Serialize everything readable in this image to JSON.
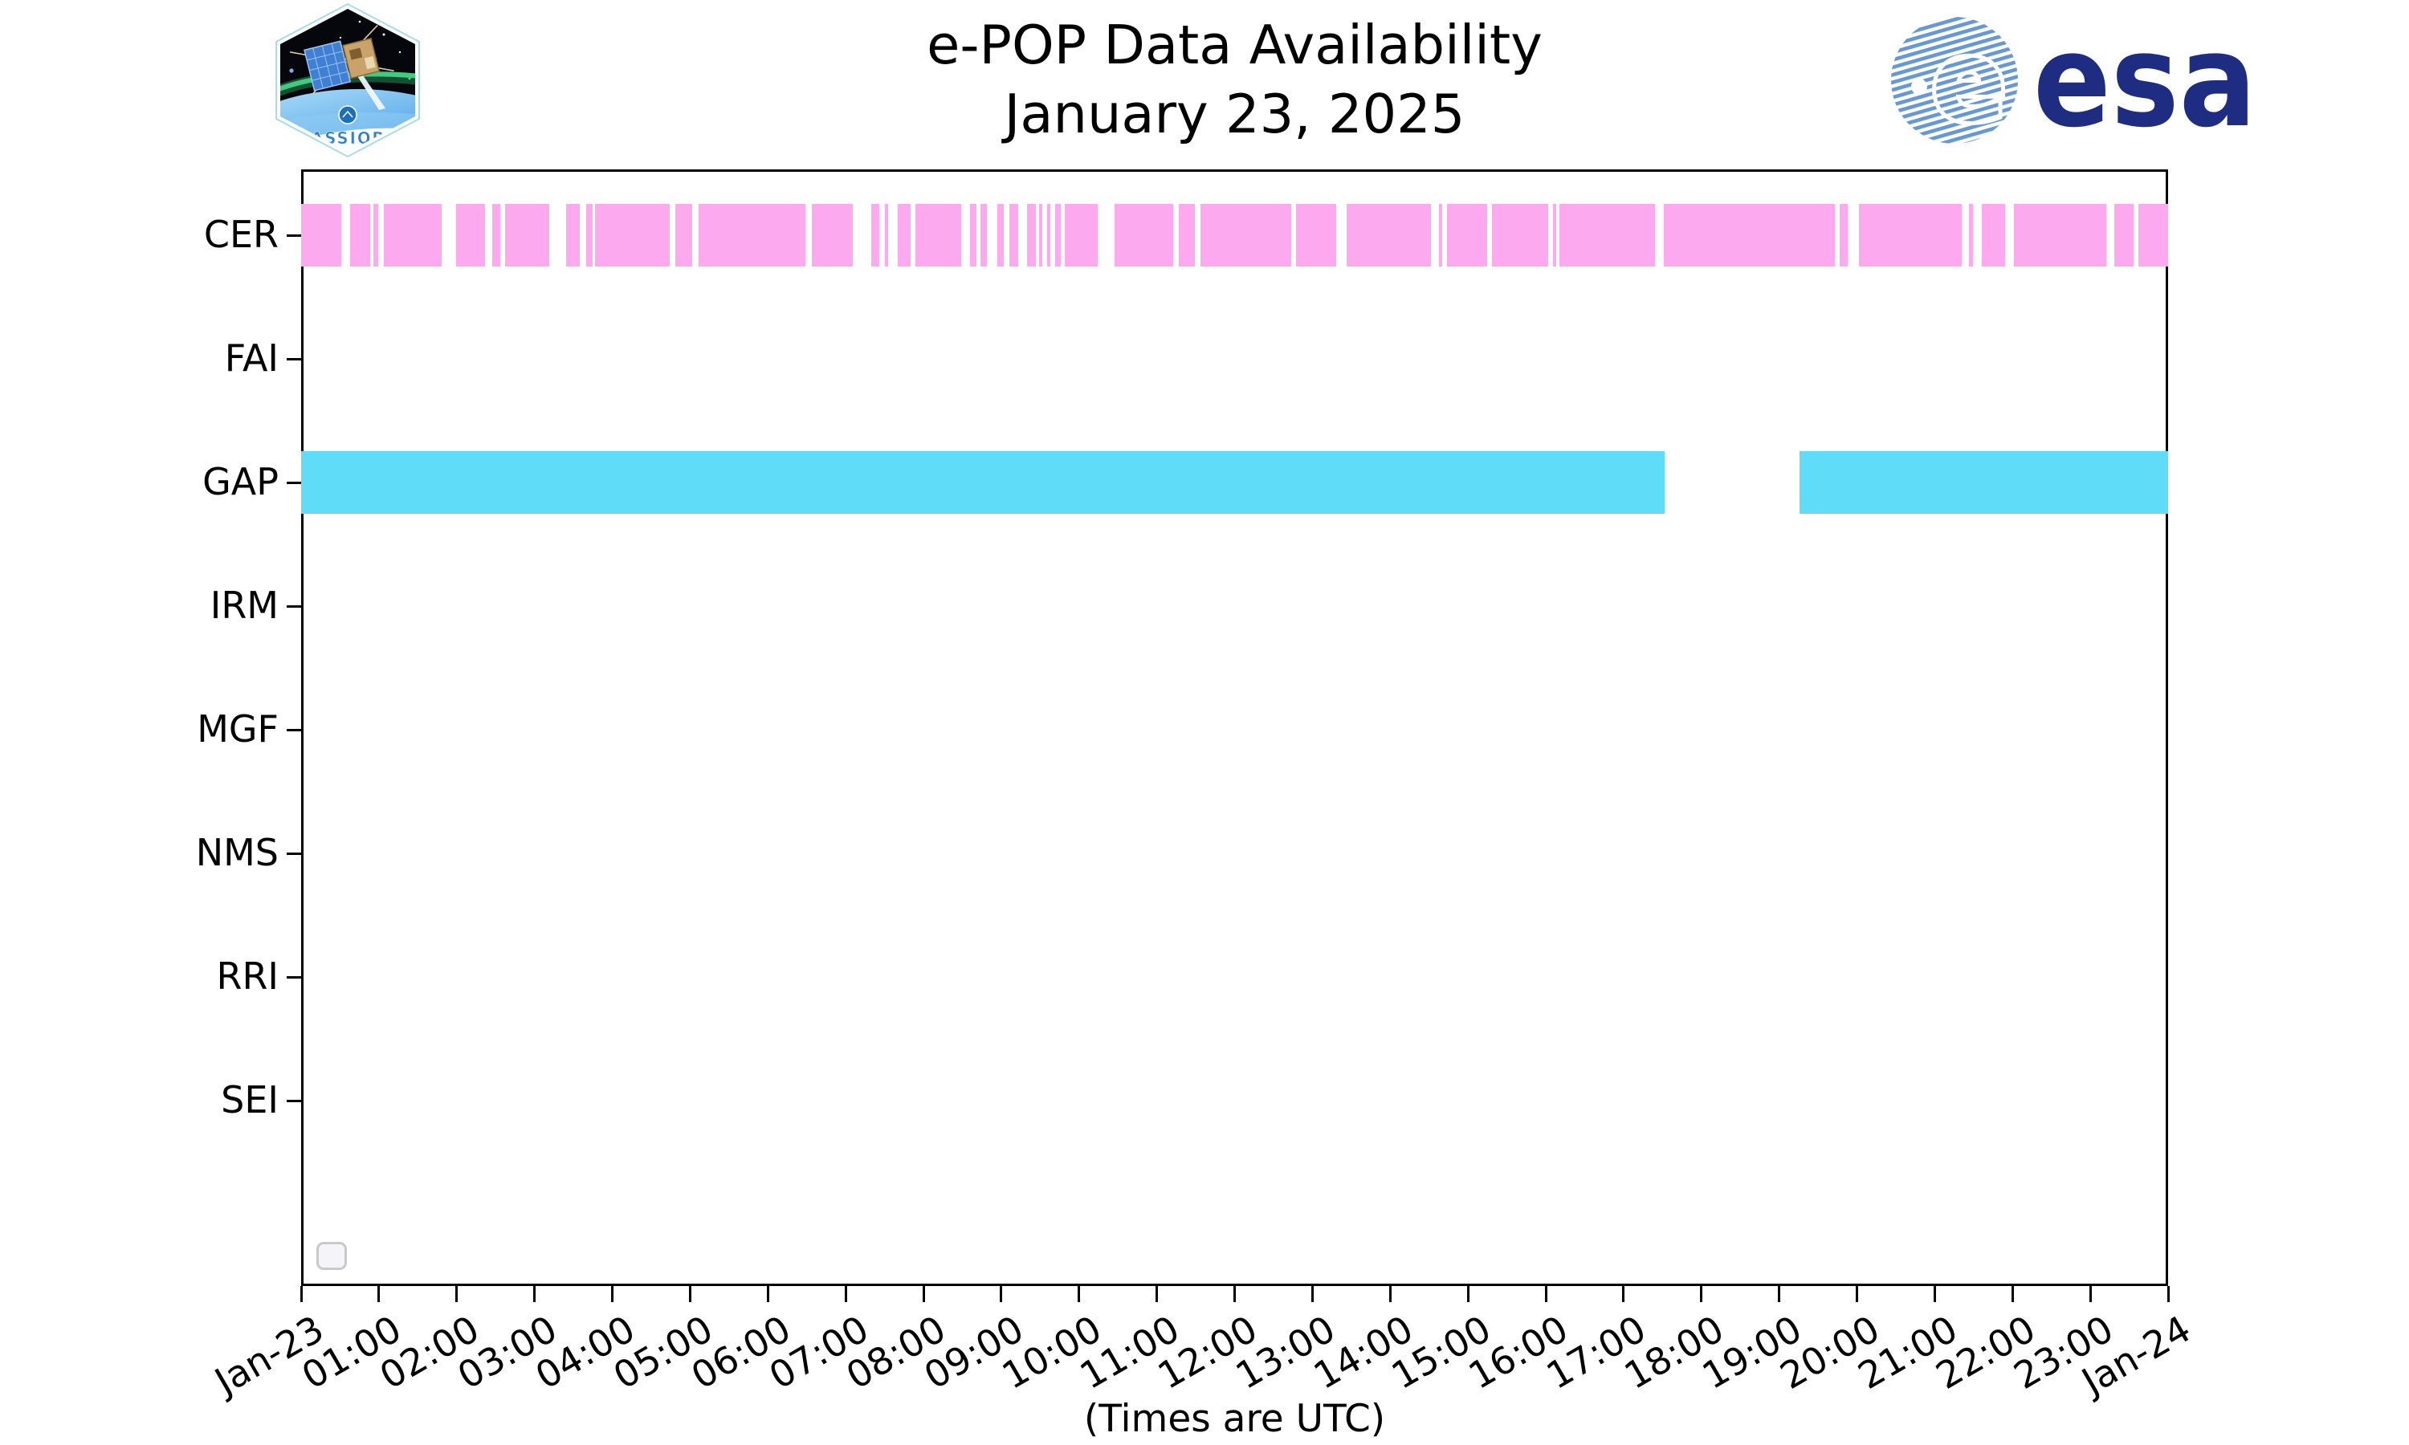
{
  "header": {
    "title": "e-POP Data Availability",
    "subtitle": "January 23, 2025",
    "cassiope_patch_text": "CASSIOPE",
    "esa_logo_text": "esa"
  },
  "chart_data": {
    "type": "timeline (broken horizontal bar / availability chart)",
    "title": "e-POP Data Availability",
    "subtitle": "January 23, 2025",
    "x_axis": {
      "caption": "(Times are UTC)",
      "range_hours": [
        0,
        24
      ],
      "tick_interval_hours": 1,
      "tick_labels": [
        "Jan-23",
        "01:00",
        "02:00",
        "03:00",
        "04:00",
        "05:00",
        "06:00",
        "07:00",
        "08:00",
        "09:00",
        "10:00",
        "11:00",
        "12:00",
        "13:00",
        "14:00",
        "15:00",
        "16:00",
        "17:00",
        "18:00",
        "19:00",
        "20:00",
        "21:00",
        "22:00",
        "23:00",
        "Jan-24"
      ]
    },
    "y_axis": {
      "categories": [
        "CER",
        "FAI",
        "GAP",
        "IRM",
        "MGF",
        "NMS",
        "RRI",
        "SEI"
      ]
    },
    "grid": false,
    "legend": {
      "visible": true,
      "items": []
    },
    "series": [
      {
        "name": "CER",
        "color": "#fda9ef",
        "intervals_hours": [
          [
            0.0,
            0.52
          ],
          [
            0.63,
            0.89
          ],
          [
            0.93,
            0.99
          ],
          [
            1.06,
            1.81
          ],
          [
            1.99,
            2.36
          ],
          [
            2.46,
            2.56
          ],
          [
            2.62,
            3.19
          ],
          [
            3.41,
            3.58
          ],
          [
            3.66,
            3.75
          ],
          [
            3.78,
            4.74
          ],
          [
            4.81,
            5.03
          ],
          [
            5.11,
            6.48
          ],
          [
            6.57,
            7.09
          ],
          [
            7.33,
            7.43
          ],
          [
            7.5,
            7.55
          ],
          [
            7.67,
            7.83
          ],
          [
            7.9,
            8.49
          ],
          [
            8.6,
            8.68
          ],
          [
            8.73,
            8.82
          ],
          [
            8.95,
            9.03
          ],
          [
            9.1,
            9.22
          ],
          [
            9.33,
            9.45
          ],
          [
            9.49,
            9.53
          ],
          [
            9.59,
            9.63
          ],
          [
            9.69,
            9.77
          ],
          [
            9.82,
            10.24
          ],
          [
            10.46,
            11.21
          ],
          [
            11.28,
            11.49
          ],
          [
            11.56,
            12.73
          ],
          [
            12.79,
            13.31
          ],
          [
            13.44,
            14.52
          ],
          [
            14.63,
            14.67
          ],
          [
            14.73,
            15.25
          ],
          [
            15.31,
            16.03
          ],
          [
            16.09,
            16.13
          ],
          [
            16.18,
            17.4
          ],
          [
            17.52,
            19.72
          ],
          [
            19.78,
            19.88
          ],
          [
            20.03,
            21.35
          ],
          [
            21.44,
            21.49
          ],
          [
            21.61,
            21.9
          ],
          [
            22.02,
            23.2
          ],
          [
            23.31,
            23.56
          ],
          [
            23.62,
            24.0
          ]
        ]
      },
      {
        "name": "FAI",
        "color": null,
        "intervals_hours": []
      },
      {
        "name": "GAP",
        "color": "#5fdcf8",
        "intervals_hours": [
          [
            0.0,
            17.53
          ],
          [
            19.26,
            24.0
          ]
        ]
      },
      {
        "name": "IRM",
        "color": null,
        "intervals_hours": []
      },
      {
        "name": "MGF",
        "color": null,
        "intervals_hours": []
      },
      {
        "name": "NMS",
        "color": null,
        "intervals_hours": []
      },
      {
        "name": "RRI",
        "color": null,
        "intervals_hours": []
      },
      {
        "name": "SEI",
        "color": null,
        "intervals_hours": []
      }
    ]
  }
}
